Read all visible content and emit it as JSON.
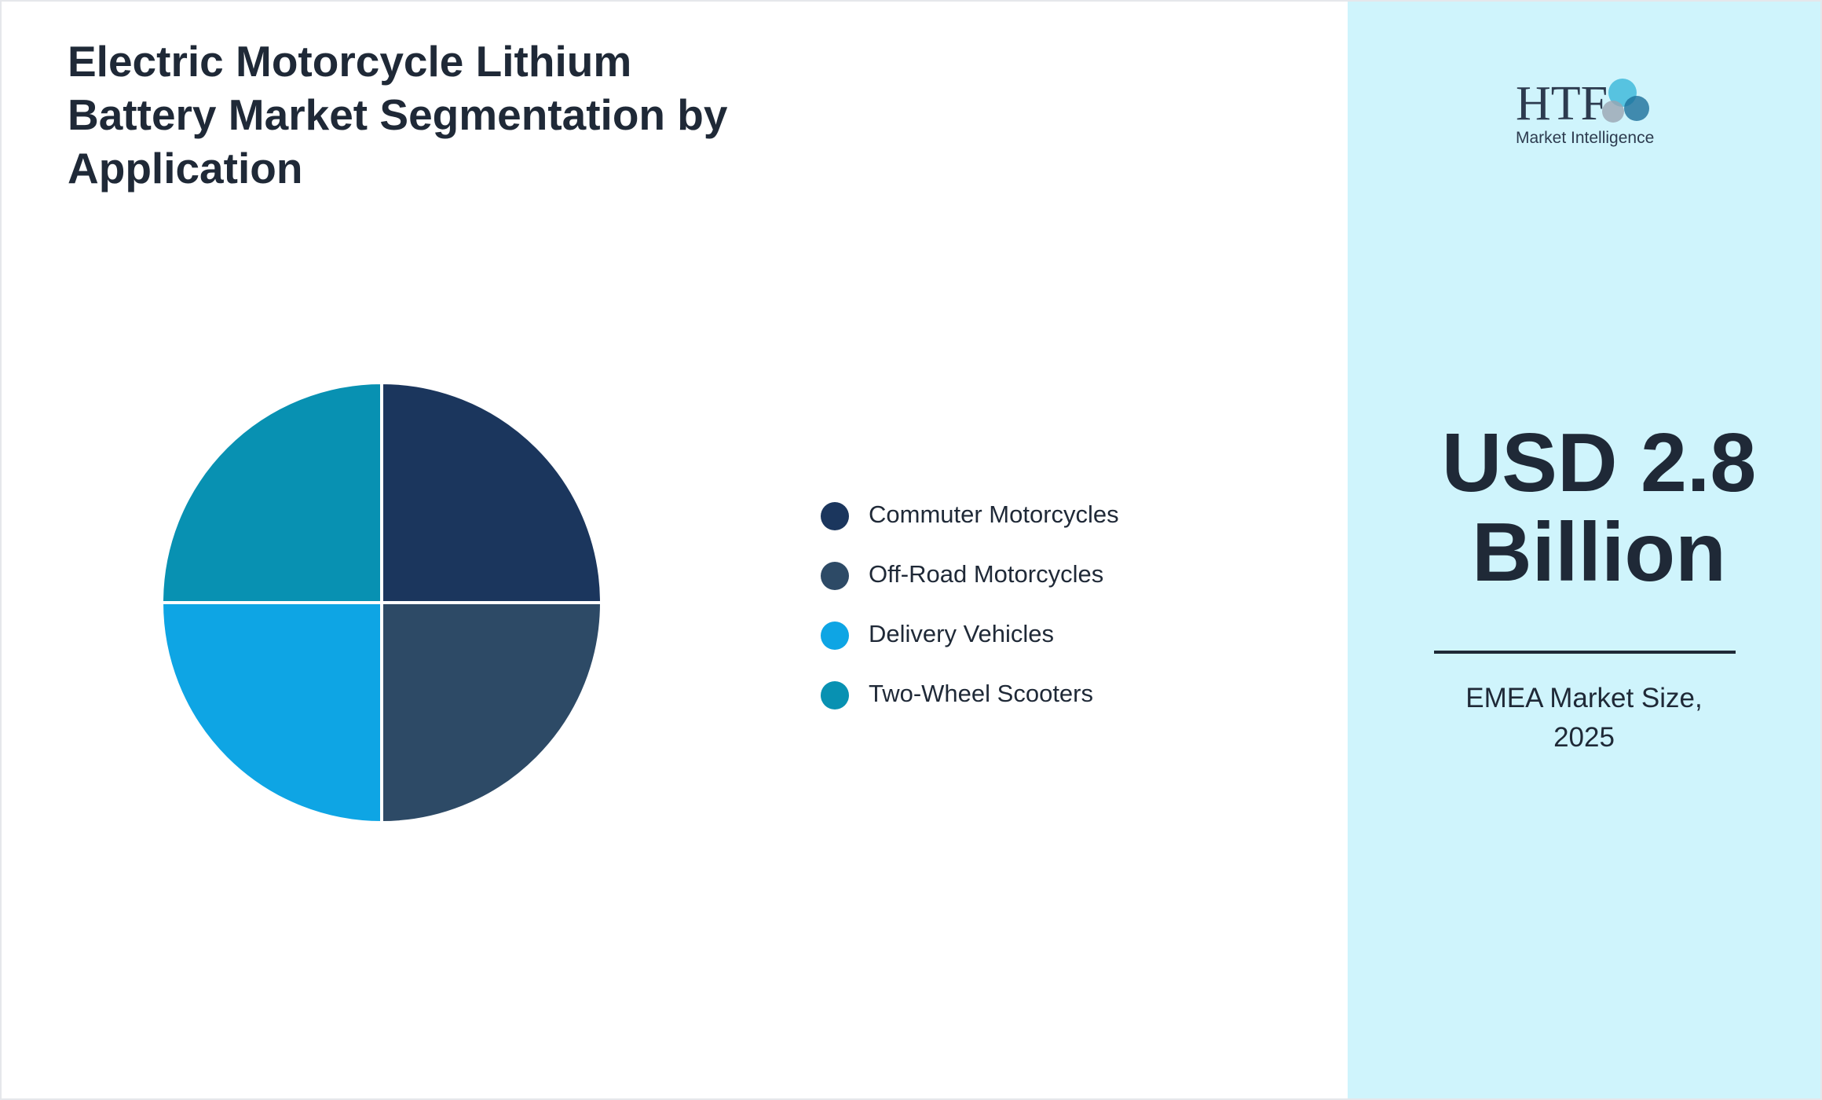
{
  "chart_data": {
    "type": "pie",
    "title": "Electric Motorcycle Lithium Battery Market Segmentation by Application",
    "categories": [
      "Commuter Motorcycles",
      "Off-Road Motorcycles",
      "Delivery Vehicles",
      "Two-Wheel Scooters"
    ],
    "values": [
      25,
      25,
      25,
      25
    ],
    "colors": [
      "#1b365d",
      "#2d4a66",
      "#0ea5e4",
      "#0891b2"
    ]
  },
  "panel": {
    "headline": "USD 2.8 Billion",
    "caption": "EMEA Market Size, 2025"
  },
  "logo": {
    "name": "HTF",
    "tagline": "Market Intelligence"
  }
}
